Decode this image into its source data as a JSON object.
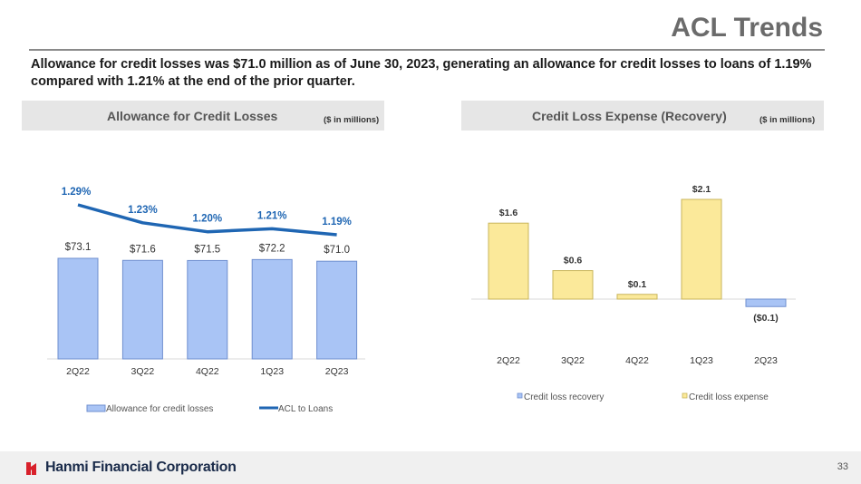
{
  "slide": {
    "title": "ACL Trends",
    "headline": "Allowance for credit losses was $71.0 million as of June 30, 2023, generating an allowance for credit losses to loans of 1.19% compared with 1.21% at the end of the prior quarter.",
    "left_section": {
      "title": "Allowance for Credit Losses",
      "unit": "($ in millions)"
    },
    "right_section": {
      "title": "Credit Loss Expense (Recovery)",
      "unit": "($ in millions)"
    },
    "footer": {
      "company": "Hanmi Financial Corporation",
      "page_number": "33"
    },
    "colors": {
      "bar_blue": "#a9c4f5",
      "line_blue": "#1f66b3",
      "bar_yellow": "#fbe99a",
      "label_blue": "#1f66b3"
    }
  },
  "chart_data": [
    {
      "type": "bar",
      "categories": [
        "2Q22",
        "3Q22",
        "4Q22",
        "1Q23",
        "2Q23"
      ],
      "series": [
        {
          "name": "Allowance for credit losses",
          "type": "bar",
          "values": [
            73.1,
            71.6,
            71.5,
            72.2,
            71.0
          ],
          "labels": [
            "$73.1",
            "$71.6",
            "$71.5",
            "$72.2",
            "$71.0"
          ]
        },
        {
          "name": "ACL to Loans",
          "type": "line",
          "values": [
            1.29,
            1.23,
            1.2,
            1.21,
            1.19
          ],
          "labels": [
            "1.29%",
            "1.23%",
            "1.20%",
            "1.21%",
            "1.19%"
          ]
        }
      ],
      "legend": "bottom"
    },
    {
      "type": "bar",
      "categories": [
        "2Q22",
        "3Q22",
        "4Q22",
        "1Q23",
        "2Q23"
      ],
      "values": [
        1.6,
        0.6,
        0.1,
        2.1,
        -0.1
      ],
      "labels": [
        "$1.6",
        "$0.6",
        "$0.1",
        "$2.1",
        "($0.1)"
      ],
      "series_names": [
        "Credit loss recovery",
        "Credit loss expense"
      ],
      "legend": "bottom"
    }
  ]
}
